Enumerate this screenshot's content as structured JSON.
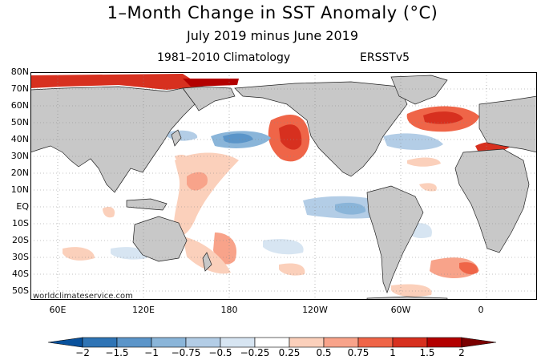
{
  "title": "1–Month Change in SST Anomaly (°C)",
  "subtitle": "July 2019 minus June 2019",
  "climatology": "1981–2010 Climatology",
  "dataset": "ERSSTv5",
  "credit": "worldclimateservice.com",
  "lat_labels": [
    "80N",
    "70N",
    "60N",
    "50N",
    "40N",
    "30N",
    "20N",
    "10N",
    "EQ",
    "10S",
    "20S",
    "30S",
    "40S",
    "50S"
  ],
  "lon_labels": [
    "60E",
    "120E",
    "180",
    "120W",
    "60W",
    "0"
  ],
  "colorbar": {
    "ticks": [
      "−2",
      "−1.5",
      "−1",
      "−0.75",
      "−0.5",
      "−0.25",
      "0.25",
      "0.5",
      "0.75",
      "1",
      "1.5",
      "2"
    ],
    "colors": [
      "#08519c",
      "#2f74b5",
      "#5b95c9",
      "#8ab5d9",
      "#b3cde6",
      "#d7e5f2",
      "#ffffff",
      "#fbd0bb",
      "#f8a38a",
      "#ef6548",
      "#d7301f",
      "#b30000",
      "#7a0000"
    ]
  },
  "colors": {
    "land": "#c8c8c8",
    "ocean": "#ffffff",
    "coast": "#222222"
  }
}
